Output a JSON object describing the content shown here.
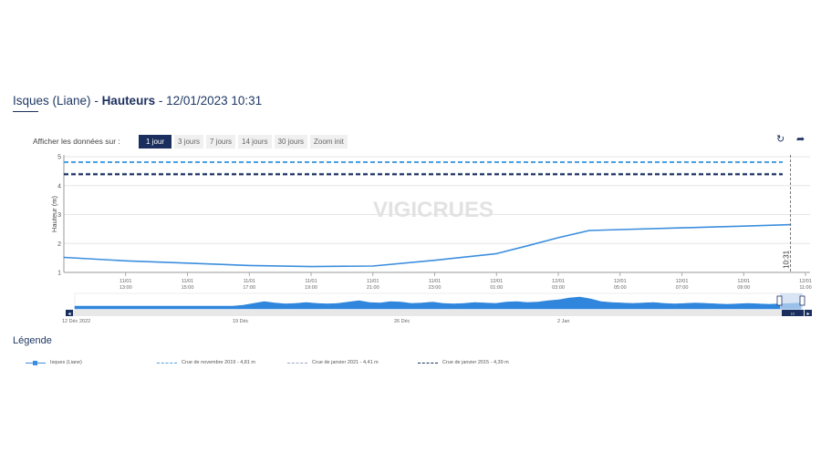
{
  "header": {
    "station": "Isques (Liane)",
    "sep1": " - ",
    "variable": "Hauteurs",
    "sep2": " - ",
    "datetime": "12/01/2023 10:31"
  },
  "toolbar": {
    "range_label": "Afficher les données sur :",
    "ranges": [
      "1 jour",
      "3 jours",
      "7 jours",
      "14 jours",
      "30 jours",
      "Zoom init"
    ],
    "active_index": 0,
    "refresh_icon": "refresh-icon",
    "share_icon": "share-icon"
  },
  "watermark": "VIGICRUES",
  "chart_data": {
    "type": "line",
    "ylabel": "Hauteur (m)",
    "ylim": [
      1,
      5
    ],
    "yticks": [
      "1",
      "2",
      "3",
      "4",
      "5"
    ],
    "x_ticks": [
      {
        "date": "11/01",
        "time": "13:00"
      },
      {
        "date": "11/01",
        "time": "15:00"
      },
      {
        "date": "11/01",
        "time": "17:00"
      },
      {
        "date": "11/01",
        "time": "19:00"
      },
      {
        "date": "11/01",
        "time": "21:00"
      },
      {
        "date": "11/01",
        "time": "23:00"
      },
      {
        "date": "12/01",
        "time": "01:00"
      },
      {
        "date": "12/01",
        "time": "03:00"
      },
      {
        "date": "12/01",
        "time": "05:00"
      },
      {
        "date": "12/01",
        "time": "07:00"
      },
      {
        "date": "12/01",
        "time": "09:00"
      },
      {
        "date": "12/01",
        "time": "11:00"
      }
    ],
    "current_time_label": "10:31",
    "series": [
      {
        "name": "Isques (Liane)",
        "color": "#3b8ede",
        "x": [
          "11/01 11:00",
          "11/01 13:00",
          "11/01 15:00",
          "11/01 17:00",
          "11/01 19:00",
          "11/01 21:00",
          "11/01 23:00",
          "12/01 01:00",
          "12/01 02:00",
          "12/01 03:00",
          "12/01 04:00",
          "12/01 05:00",
          "12/01 07:00",
          "12/01 09:00",
          "12/01 10:31"
        ],
        "values": [
          1.52,
          1.4,
          1.32,
          1.24,
          1.2,
          1.22,
          1.42,
          1.65,
          1.92,
          2.2,
          2.45,
          2.48,
          2.54,
          2.6,
          2.65
        ]
      }
    ],
    "thresholds": [
      {
        "name": "Crue de novembre 2019 - 4,81 m",
        "value": 4.81,
        "color": "#4a9fe0",
        "dash": "dash"
      },
      {
        "name": "Crue de janvier 2021 - 4,41 m",
        "value": 4.41,
        "color": "#9aa7c4",
        "dash": "dash"
      },
      {
        "name": "Crue de janvier 2015 - 4,39 m",
        "value": 4.39,
        "color": "#1b2f5e",
        "dash": "dash"
      }
    ],
    "grid": true
  },
  "navigator": {
    "labels": [
      "12 Déc 2022",
      "19 Déc",
      "26 Déc",
      "2 Jan"
    ],
    "profile": [
      0,
      0,
      0,
      0,
      0,
      0,
      0,
      0,
      0,
      0,
      0,
      0,
      0,
      0,
      0,
      0,
      0.1,
      0.3,
      0.5,
      0.35,
      0.25,
      0.3,
      0.4,
      0.3,
      0.25,
      0.3,
      0.45,
      0.6,
      0.4,
      0.35,
      0.5,
      0.45,
      0.3,
      0.35,
      0.45,
      0.3,
      0.25,
      0.3,
      0.4,
      0.35,
      0.3,
      0.45,
      0.5,
      0.4,
      0.45,
      0.6,
      0.7,
      0.9,
      1.0,
      0.8,
      0.5,
      0.4,
      0.35,
      0.3,
      0.35,
      0.4,
      0.3,
      0.25,
      0.3,
      0.35,
      0.3,
      0.25,
      0.2,
      0.25,
      0.3,
      0.25,
      0.2,
      0.25,
      0.3,
      0.35
    ],
    "left_arrow": "◂",
    "right_arrow": "▸",
    "grip": "III"
  },
  "legend": {
    "title": "Légende"
  }
}
